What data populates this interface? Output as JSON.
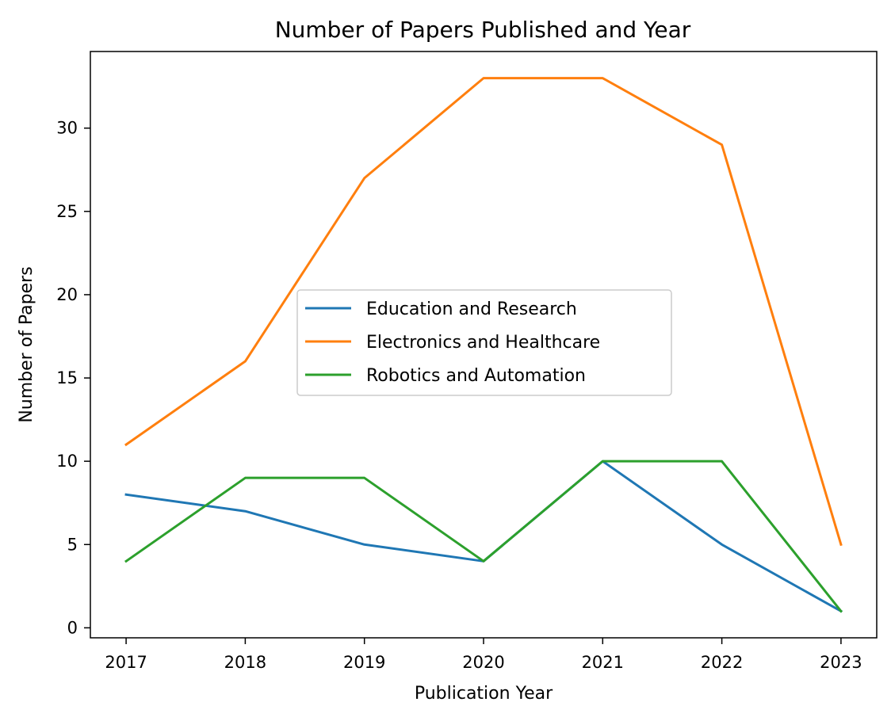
{
  "chart_data": {
    "type": "line",
    "title": "Number of Papers Published and Year",
    "xlabel": "Publication Year",
    "ylabel": "Number of Papers",
    "x": [
      "2017",
      "2018",
      "2019",
      "2020",
      "2021",
      "2022",
      "2023"
    ],
    "x_numeric": [
      2017,
      2018,
      2019,
      2020,
      2021,
      2022,
      2023
    ],
    "xlim": [
      2016.7,
      2023.3
    ],
    "ylim": [
      -0.6,
      34.6
    ],
    "yticks": [
      0,
      5,
      10,
      15,
      20,
      25,
      30
    ],
    "grid": false,
    "legend_position": "center",
    "series": [
      {
        "name": "Education and Research",
        "color": "#1f77b4",
        "values": [
          8,
          7,
          5,
          4,
          10,
          5,
          1
        ]
      },
      {
        "name": "Electronics and Healthcare",
        "color": "#ff7f0e",
        "values": [
          11,
          16,
          27,
          33,
          33,
          29,
          5
        ]
      },
      {
        "name": "Robotics and Automation",
        "color": "#2ca02c",
        "values": [
          4,
          9,
          9,
          4,
          10,
          10,
          1
        ]
      }
    ]
  }
}
